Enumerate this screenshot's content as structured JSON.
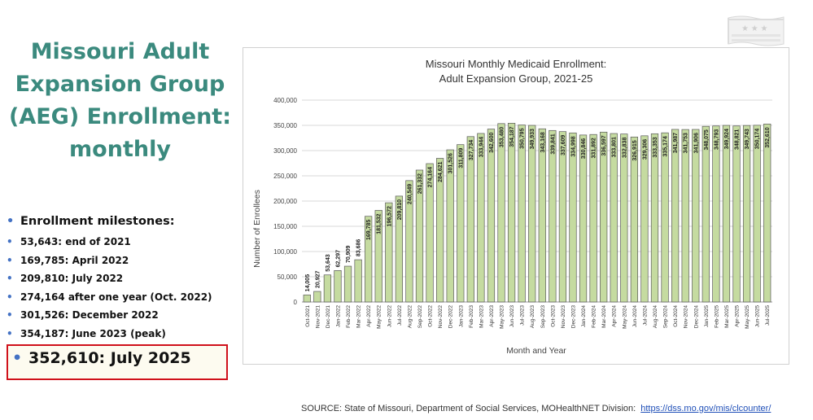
{
  "slide_title": [
    "Missouri Adult",
    "Expansion Group",
    "(AEG) Enrollment:",
    "monthly"
  ],
  "milestones": {
    "heading": "Enrollment milestones:",
    "items": [
      "53,643: end of 2021",
      "169,785: April 2022",
      "209,810: July 2022",
      "274,164 after one year (Oct. 2022)",
      "301,526: December 2022",
      "354,187: June 2023 (peak)"
    ],
    "highlight": "352,610: July 2025"
  },
  "source": {
    "text": "SOURCE: State of Missouri, Department of Social Services, MOHealthNET Division:",
    "link": "https://dss.mo.gov/mis/clcounter/"
  },
  "colors": {
    "title": "#3b8a7e",
    "bar_fill": "#c5dba0",
    "bar_stroke": "#5a5a5a",
    "highlight_border": "#d0111b",
    "bullet": "#4472c4"
  },
  "chart_data": {
    "type": "bar",
    "title_lines": [
      "Missouri Monthly Medicaid Enrollment:",
      "Adult Expansion Group, 2021-25"
    ],
    "xlabel": "Month and Year",
    "ylabel": "Number of Enrollees",
    "ylim": [
      0,
      400000
    ],
    "yticks": [
      0,
      50000,
      100000,
      150000,
      200000,
      250000,
      300000,
      350000,
      400000
    ],
    "ytick_labels": [
      "0",
      "50,000",
      "100,000",
      "150,000",
      "200,000",
      "250,000",
      "300,000",
      "350,000",
      "400,000"
    ],
    "categories": [
      "Oct-2021",
      "Nov-2021",
      "Dec-2021",
      "Jan-2022",
      "Feb-2022",
      "Mar-2022",
      "Apr-2022",
      "May-2022",
      "Jun-2022",
      "Jul-2022",
      "Aug-2022",
      "Sep-2022",
      "Oct-2022",
      "Nov-2022",
      "Dec-2022",
      "Jan-2023",
      "Feb-2023",
      "Mar-2023",
      "Apr-2023",
      "May-2023",
      "Jun-2023",
      "Jul-2023",
      "Aug-2023",
      "Sep-2023",
      "Oct-2023",
      "Nov-2023",
      "Dec-2023",
      "Jan-2024",
      "Feb-2024",
      "Mar-2024",
      "Apr-2024",
      "May-2024",
      "Jun-2024",
      "Jul-2024",
      "Aug-2024",
      "Sep-2024",
      "Oct-2024",
      "Nov-2024",
      "Dec-2024",
      "Jan-2025",
      "Feb-2025",
      "Mar-2025",
      "Apr-2025",
      "May-2025",
      "Jun-2025",
      "Jul-2025"
    ],
    "values": [
      14005,
      20927,
      53643,
      62297,
      70909,
      83686,
      169785,
      181532,
      196572,
      209810,
      240549,
      261332,
      274164,
      284621,
      301526,
      311809,
      327734,
      333944,
      342600,
      353480,
      354187,
      350795,
      349933,
      343168,
      339841,
      337609,
      334998,
      330846,
      331892,
      336597,
      333801,
      332838,
      326915,
      329306,
      333353,
      335174,
      341987,
      341753,
      341906,
      348075,
      348793,
      349924,
      348821,
      349743,
      350174,
      352610
    ],
    "data_labels": [
      "14,005",
      "20,927",
      "53,643",
      "62,297",
      "70,909",
      "83,686",
      "169,785",
      "181,532",
      "196,572",
      "209,810",
      "240,549",
      "261,332",
      "274,164",
      "284,621",
      "301,526",
      "311,809",
      "327,734",
      "333,944",
      "342,600",
      "353,480",
      "354,187",
      "350,795",
      "349,933",
      "343,168",
      "339,841",
      "337,609",
      "334,998",
      "330,846",
      "331,892",
      "336,597",
      "333,801",
      "332,838",
      "326,915",
      "329,306",
      "333,353",
      "335,174",
      "341,987",
      "341,753",
      "341,906",
      "348,075",
      "348,793",
      "349,924",
      "348,821",
      "349,743",
      "350,174",
      "352,610"
    ]
  }
}
